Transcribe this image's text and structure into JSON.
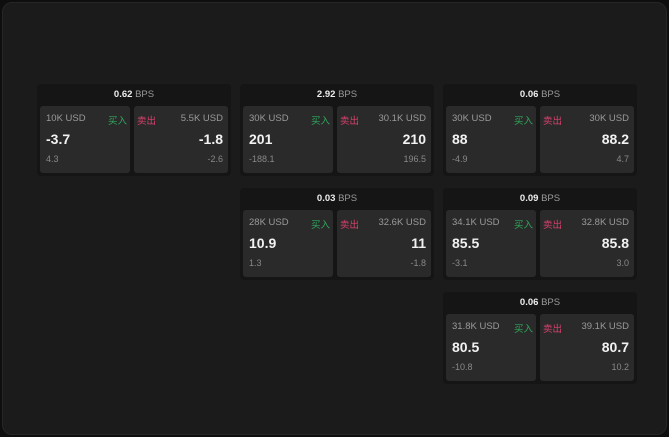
{
  "unit": "BPS",
  "colors": {
    "buy": "#2fa85c",
    "sell": "#d9406d"
  },
  "buy_label": "买入",
  "sell_label": "卖出",
  "widgets": [
    {
      "spread": "0.62",
      "bid": {
        "size": "10K USD",
        "price": "-3.7",
        "change": "4.3"
      },
      "ask": {
        "size": "5.5K USD",
        "price": "-1.8",
        "change": "-2.6"
      }
    },
    {
      "spread": "2.92",
      "bid": {
        "size": "30K USD",
        "price": "201",
        "change": "-188.1"
      },
      "ask": {
        "size": "30.1K USD",
        "price": "210",
        "change": "196.5"
      }
    },
    {
      "spread": "0.06",
      "bid": {
        "size": "30K USD",
        "price": "88",
        "change": "-4.9"
      },
      "ask": {
        "size": "30K USD",
        "price": "88.2",
        "change": "4.7"
      }
    },
    {
      "spread": "0.03",
      "bid": {
        "size": "28K USD",
        "price": "10.9",
        "change": "1.3"
      },
      "ask": {
        "size": "32.6K USD",
        "price": "11",
        "change": "-1.8"
      }
    },
    {
      "spread": "0.09",
      "bid": {
        "size": "34.1K USD",
        "price": "85.5",
        "change": "-3.1"
      },
      "ask": {
        "size": "32.8K USD",
        "price": "85.8",
        "change": "3.0"
      }
    },
    {
      "spread": "0.06",
      "bid": {
        "size": "31.8K USD",
        "price": "80.5",
        "change": "-10.8"
      },
      "ask": {
        "size": "39.1K USD",
        "price": "80.7",
        "change": "10.2"
      }
    }
  ]
}
